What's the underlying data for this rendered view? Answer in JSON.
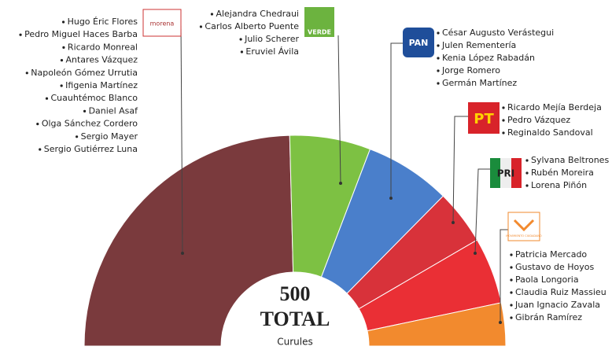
{
  "chart_data": {
    "type": "semi_donut",
    "total": 500,
    "total_label": "TOTAL",
    "unit_label": "Curules",
    "series": [
      {
        "name": "morena",
        "color": "#7a3a3d",
        "value": 246,
        "members": [
          "Hugo Éric Flores",
          "Pedro Miguel Haces Barba",
          "Ricardo Monreal",
          "Antares Vázquez",
          "Napoleón Gómez Urrutia",
          "Ifigenia Martínez",
          "Cuauhtémoc Blanco",
          "Daniel Asaf",
          "Olga Sánchez Cordero",
          "Sergio Mayer",
          "Sergio Gutiérrez Luna"
        ]
      },
      {
        "name": "VERDE",
        "color": "#7dc143",
        "value": 62,
        "members": [
          "Alejandra Chedraui",
          "Carlos Alberto Puente",
          "Julio Scherer",
          "Eruviel Ávila"
        ]
      },
      {
        "name": "PAN",
        "color": "#4a7fcb",
        "value": 66,
        "members": [
          "César Augusto Verástegui",
          "Julen Rementería",
          "Kenia López Rabadán",
          "Jorge Romero",
          "Germán Martínez"
        ]
      },
      {
        "name": "PT",
        "color": "#d8323a",
        "value": 42,
        "members": [
          "Ricardo Mejía Berdeja",
          "Pedro Vázquez",
          "Reginaldo Sandoval"
        ]
      },
      {
        "name": "PRI",
        "color": "#ea2f35",
        "value": 51,
        "members": [
          "Sylvana Beltrones",
          "Rubén Moreira",
          "Lorena Piñón"
        ]
      },
      {
        "name": "MOVIMIENTO CIUDADANO",
        "color": "#f28a2e",
        "value": 33,
        "members": [
          "Patricia Mercado",
          "Gustavo de Hoyos",
          "Paola Longoria",
          "Claudia Ruiz Massieu",
          "Juan Ignacio Zavala",
          "Gibrán Ramírez"
        ]
      }
    ]
  }
}
